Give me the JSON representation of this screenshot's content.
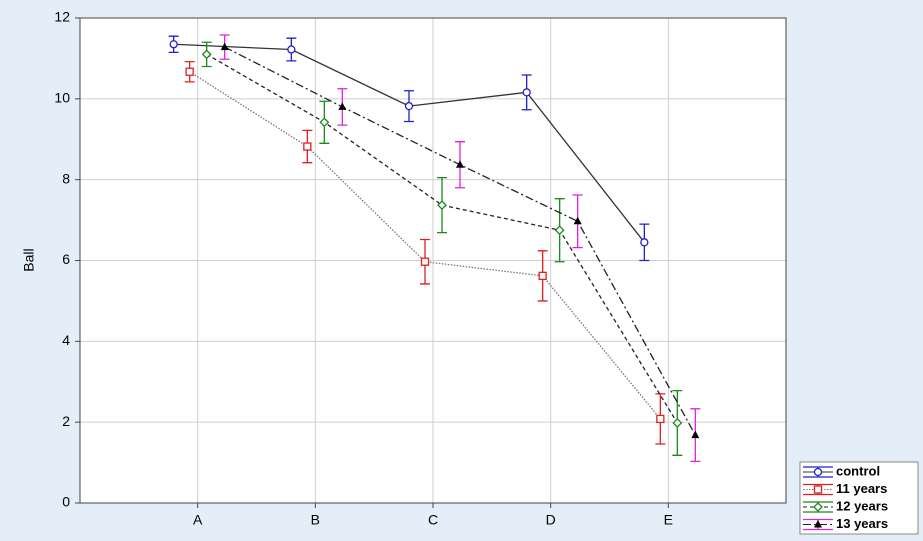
{
  "chart_data": {
    "type": "line",
    "y_label": "Ball",
    "categories": [
      "A",
      "B",
      "C",
      "D",
      "E"
    ],
    "ylim": [
      0,
      12
    ],
    "yticks": [
      0,
      2,
      4,
      6,
      8,
      10,
      12
    ],
    "grid": true,
    "legend": "bottom-right",
    "series": [
      {
        "name": "control",
        "color": "#1f1fd0",
        "line_style": "solid",
        "marker": "circle",
        "values": [
          11.35,
          11.22,
          9.82,
          10.16,
          6.45
        ],
        "errors": [
          0.2,
          0.28,
          0.38,
          0.43,
          0.45
        ]
      },
      {
        "name": "11 years",
        "color": "#e01f1f",
        "line_style": "dotted",
        "marker": "square",
        "values": [
          10.67,
          8.82,
          5.97,
          5.62,
          2.08
        ],
        "errors": [
          0.25,
          0.4,
          0.55,
          0.62,
          0.62
        ]
      },
      {
        "name": "12 years",
        "color": "#1a8a1a",
        "line_style": "dashed",
        "marker": "diamond",
        "values": [
          11.1,
          9.42,
          7.37,
          6.75,
          1.98
        ],
        "errors": [
          0.3,
          0.52,
          0.68,
          0.78,
          0.8
        ]
      },
      {
        "name": "13 years",
        "color": "#e020e0",
        "line_style": "dashdot",
        "marker": "triangle",
        "values": [
          11.28,
          9.8,
          8.37,
          6.97,
          1.68
        ],
        "errors": [
          0.3,
          0.45,
          0.57,
          0.65,
          0.65
        ]
      }
    ]
  }
}
